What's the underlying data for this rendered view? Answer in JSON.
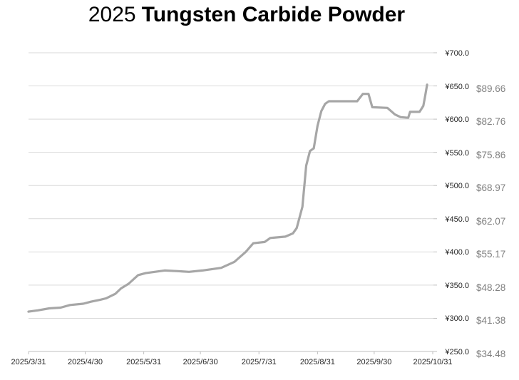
{
  "title": {
    "prefix": "2025",
    "main": "Tungsten Carbide Powder"
  },
  "chart_data": {
    "type": "line",
    "title": "2025 Tungsten Carbide Powder",
    "legend": "none",
    "grid": true,
    "ylim": [
      250,
      700
    ],
    "x_range": [
      "2025/3/31",
      "2025/10/31"
    ],
    "x_tick_labels": [
      "2025/3/31",
      "2025/4/30",
      "2025/5/31",
      "2025/6/30",
      "2025/7/31",
      "2025/8/31",
      "2025/9/30",
      "2025/10/31"
    ],
    "y_right_axis": {
      "gridline_values": [
        700,
        650,
        600,
        550,
        500,
        450,
        400,
        350,
        300,
        250
      ],
      "yen_labels": [
        "¥700.0",
        "¥650.0",
        "¥600.0",
        "¥550.0",
        "¥500.0",
        "¥450.0",
        "¥400.0",
        "¥350.0",
        "¥300.0",
        "¥250.0"
      ],
      "usd_labels": [
        "",
        "$89.66",
        "$82.76",
        "$75.86",
        "$68.97",
        "$62.07",
        "$55.17",
        "$48.28",
        "$41.38",
        "$34.48"
      ]
    },
    "series": [
      {
        "name": "Tungsten Carbide Powder",
        "color": "#a6a6a6",
        "points": [
          [
            "2025/3/31",
            310
          ],
          [
            "2025/4/5",
            312
          ],
          [
            "2025/4/11",
            315
          ],
          [
            "2025/4/17",
            316
          ],
          [
            "2025/4/22",
            320
          ],
          [
            "2025/4/29",
            322
          ],
          [
            "2025/5/3",
            325
          ],
          [
            "2025/5/8",
            328
          ],
          [
            "2025/5/11",
            330
          ],
          [
            "2025/5/16",
            337
          ],
          [
            "2025/5/19",
            345
          ],
          [
            "2025/5/23",
            352
          ],
          [
            "2025/5/28",
            365
          ],
          [
            "2025/6/1",
            368
          ],
          [
            "2025/6/11",
            372
          ],
          [
            "2025/6/18",
            371
          ],
          [
            "2025/6/24",
            370
          ],
          [
            "2025/7/1",
            372
          ],
          [
            "2025/7/11",
            376
          ],
          [
            "2025/7/18",
            385
          ],
          [
            "2025/7/24",
            400
          ],
          [
            "2025/7/28",
            413
          ],
          [
            "2025/8/3",
            415
          ],
          [
            "2025/8/6",
            421
          ],
          [
            "2025/8/14",
            423
          ],
          [
            "2025/8/18",
            428
          ],
          [
            "2025/8/20",
            436
          ],
          [
            "2025/8/23",
            468
          ],
          [
            "2025/8/25",
            530
          ],
          [
            "2025/8/27",
            552
          ],
          [
            "2025/8/29",
            556
          ],
          [
            "2025/8/31",
            590
          ],
          [
            "2025/9/2",
            612
          ],
          [
            "2025/9/4",
            623
          ],
          [
            "2025/9/6",
            627
          ],
          [
            "2025/9/21",
            627
          ],
          [
            "2025/9/24",
            638
          ],
          [
            "2025/9/27",
            638
          ],
          [
            "2025/9/29",
            618
          ],
          [
            "2025/10/7",
            617
          ],
          [
            "2025/10/11",
            607
          ],
          [
            "2025/10/14",
            603
          ],
          [
            "2025/10/18",
            602
          ],
          [
            "2025/10/19",
            611
          ],
          [
            "2025/10/24",
            611
          ],
          [
            "2025/10/26",
            620
          ],
          [
            "2025/10/27",
            635
          ],
          [
            "2025/10/28",
            652
          ]
        ]
      }
    ]
  },
  "colors": {
    "line": "#a6a6a6",
    "gridline": "#d9d9d9",
    "axis": "#bfbfbf",
    "tick_label": "#262626",
    "usd_label": "#808080",
    "title": "#000000",
    "background": "#ffffff"
  }
}
